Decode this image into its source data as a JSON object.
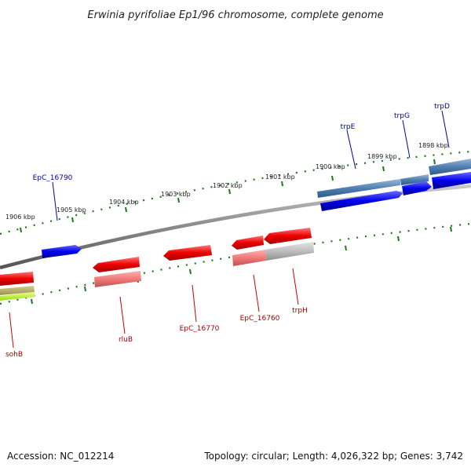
{
  "title": "Erwinia pyrifoliae Ep1/96 chromosome, complete genome",
  "footer": {
    "accession": "Accession: NC_012214",
    "summary": "Topology: circular; Length: 4,026,322 bp; Genes: 3,742"
  },
  "colors": {
    "plus_gene": "#0000ee",
    "minus_gene": "#ee0000",
    "plus_label": "#0000aa",
    "minus_label": "#aa0000",
    "backbone": "#777777",
    "ticks": "#1a7a1a"
  },
  "scale_labels": [
    "1906 kbp",
    "1905 kbp",
    "1904 kbp",
    "1903 kbp",
    "1902 kbp",
    "1901 kbp",
    "1900 kbp",
    "1899 kbp",
    "1898 kbp"
  ],
  "genes": [
    {
      "name": "trpE",
      "strand": "+"
    },
    {
      "name": "trpG",
      "strand": "+"
    },
    {
      "name": "trpD",
      "strand": "+"
    },
    {
      "name": "EpC_16790",
      "strand": "+"
    },
    {
      "name": "sohB",
      "strand": "-"
    },
    {
      "name": "rluB",
      "strand": "-"
    },
    {
      "name": "EpC_16770",
      "strand": "-"
    },
    {
      "name": "EpC_16760",
      "strand": "-"
    },
    {
      "name": "trpH",
      "strand": "-"
    }
  ]
}
